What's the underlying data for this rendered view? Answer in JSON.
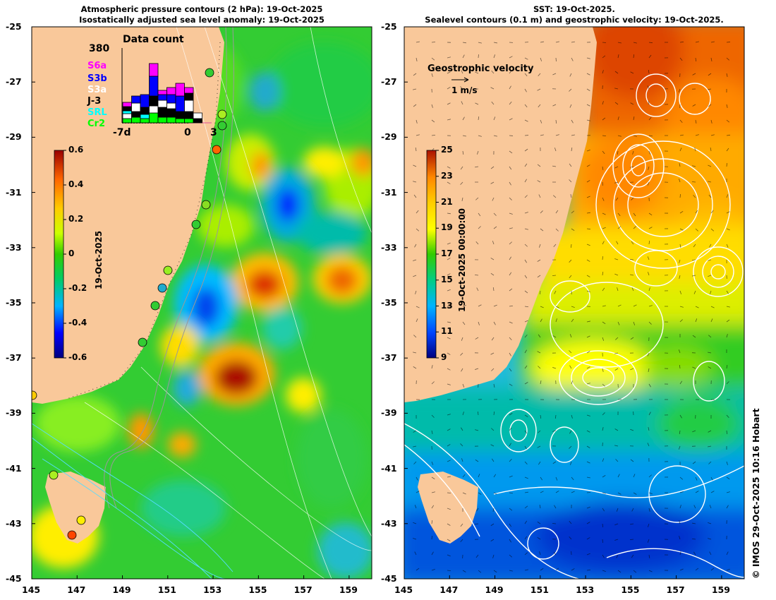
{
  "left_panel": {
    "title_line1": "Atmospheric pressure contours (2 hPa): 19-Oct-2025",
    "title_line2": "Isostatically adjusted sea level anomaly: 19-Oct-2025",
    "colorbar": {
      "ticks": [
        "0.6",
        "0.4",
        "0.2",
        "0",
        "-0.2",
        "-0.4",
        "-0.6"
      ],
      "label": "19-Oct-2025",
      "range": [
        -0.6,
        0.6
      ]
    },
    "data_count": {
      "title": "Data count",
      "max_label": "380",
      "x_ticks": [
        "-7d",
        "0",
        "3"
      ],
      "missions": [
        {
          "name": "S6a",
          "color": "#ff00ff"
        },
        {
          "name": "S3b",
          "color": "#0000ff"
        },
        {
          "name": "S3a",
          "color": "#ffffff"
        },
        {
          "name": "J-3",
          "color": "#000000"
        },
        {
          "name": "SRL",
          "color": "#00ffff"
        },
        {
          "name": "Cr2",
          "color": "#00ff00"
        }
      ]
    }
  },
  "right_panel": {
    "title_line1": "SST: 19-Oct-2025.",
    "title_line2": "Sealevel contours (0.1 m) and geostrophic velocity: 19-Oct-2025.",
    "colorbar": {
      "ticks": [
        "25",
        "23",
        "21",
        "19",
        "17",
        "15",
        "13",
        "11",
        "9"
      ],
      "label": "19-Oct-2025 00:00:00",
      "range": [
        9,
        25
      ]
    },
    "velocity_legend": {
      "title": "Geostrophic velocity",
      "scale": "1 m/s"
    }
  },
  "axes": {
    "lat_ticks": [
      "-25",
      "-27",
      "-29",
      "-31",
      "-33",
      "-35",
      "-37",
      "-39",
      "-41",
      "-43",
      "-45"
    ],
    "lon_ticks": [
      "145",
      "147",
      "149",
      "151",
      "153",
      "155",
      "157",
      "159"
    ],
    "lon_range": [
      145,
      160
    ],
    "lat_range": [
      -45,
      -25
    ]
  },
  "credit": "© IMOS 29-Oct-2025 10:16 Hobart",
  "colors": {
    "land": "#f9c89a",
    "ocean_default": "#33cc33"
  }
}
